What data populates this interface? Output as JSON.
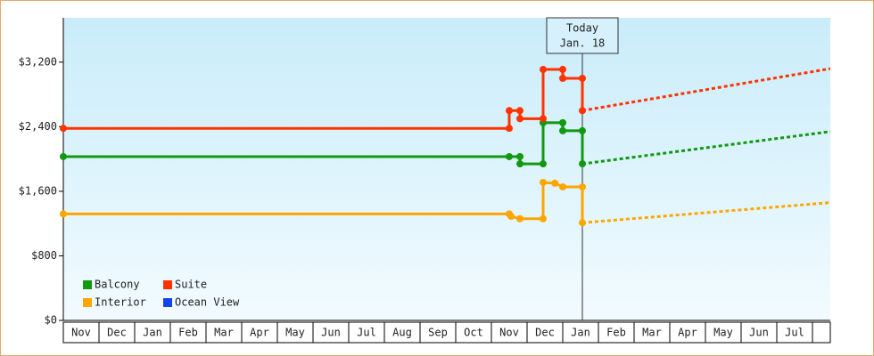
{
  "chart_data": {
    "type": "line",
    "xlim": [
      0,
      21.5
    ],
    "xticks": [
      {
        "value": 0.5,
        "label": "Nov"
      },
      {
        "value": 1.5,
        "label": "Dec"
      },
      {
        "value": 2.5,
        "label": "Jan"
      },
      {
        "value": 3.5,
        "label": "Feb"
      },
      {
        "value": 4.5,
        "label": "Mar"
      },
      {
        "value": 5.5,
        "label": "Apr"
      },
      {
        "value": 6.5,
        "label": "May"
      },
      {
        "value": 7.5,
        "label": "Jun"
      },
      {
        "value": 8.5,
        "label": "Jul"
      },
      {
        "value": 9.5,
        "label": "Aug"
      },
      {
        "value": 10.5,
        "label": "Sep"
      },
      {
        "value": 11.5,
        "label": "Oct"
      },
      {
        "value": 12.5,
        "label": "Nov"
      },
      {
        "value": 13.5,
        "label": "Dec"
      },
      {
        "value": 14.5,
        "label": "Jan"
      },
      {
        "value": 15.5,
        "label": "Feb"
      },
      {
        "value": 16.5,
        "label": "Mar"
      },
      {
        "value": 17.5,
        "label": "Apr"
      },
      {
        "value": 18.5,
        "label": "May"
      },
      {
        "value": 19.5,
        "label": "Jun"
      },
      {
        "value": 20.5,
        "label": "Jul"
      }
    ],
    "ylim": [
      0,
      3750
    ],
    "yticks": [
      {
        "value": 0,
        "label": "$0"
      },
      {
        "value": 800,
        "label": "$800"
      },
      {
        "value": 1600,
        "label": "$1,600"
      },
      {
        "value": 2400,
        "label": "$2,400"
      },
      {
        "value": 3200,
        "label": "$3,200"
      }
    ],
    "annotation": {
      "lines": [
        "Today",
        "Jan. 18"
      ],
      "x": 14.55
    },
    "series": [
      {
        "name": "Balcony",
        "color": "#119911",
        "x": [
          0,
          12.5,
          12.8,
          12.8,
          13.45,
          13.45,
          14.0,
          14.0,
          14.55,
          14.55
        ],
        "values": [
          2030,
          2030,
          2030,
          1940,
          1940,
          2450,
          2450,
          2350,
          2350,
          1940
        ],
        "forecast_x": [
          14.55,
          21.5
        ],
        "forecast_values": [
          1940,
          2340
        ]
      },
      {
        "name": "Suite",
        "color": "#ff3300",
        "x": [
          0,
          12.5,
          12.5,
          12.8,
          12.8,
          13.45,
          13.45,
          14.0,
          14.0,
          14.55,
          14.55
        ],
        "values": [
          2380,
          2380,
          2600,
          2600,
          2500,
          2500,
          3110,
          3110,
          3000,
          3000,
          2600
        ],
        "forecast_x": [
          14.55,
          21.5
        ],
        "forecast_values": [
          2600,
          3120
        ]
      },
      {
        "name": "Interior",
        "color": "#ffa500",
        "x": [
          0,
          12.5,
          12.55,
          12.8,
          13.45,
          13.45,
          13.78,
          14.0,
          14.55,
          14.55
        ],
        "values": [
          1320,
          1320,
          1290,
          1260,
          1260,
          1710,
          1700,
          1655,
          1655,
          1210
        ],
        "forecast_x": [
          14.55,
          21.5
        ],
        "forecast_values": [
          1210,
          1460
        ]
      },
      {
        "name": "Ocean View",
        "color": "#1144ee",
        "x": [],
        "values": [],
        "forecast_x": [],
        "forecast_values": []
      }
    ]
  }
}
